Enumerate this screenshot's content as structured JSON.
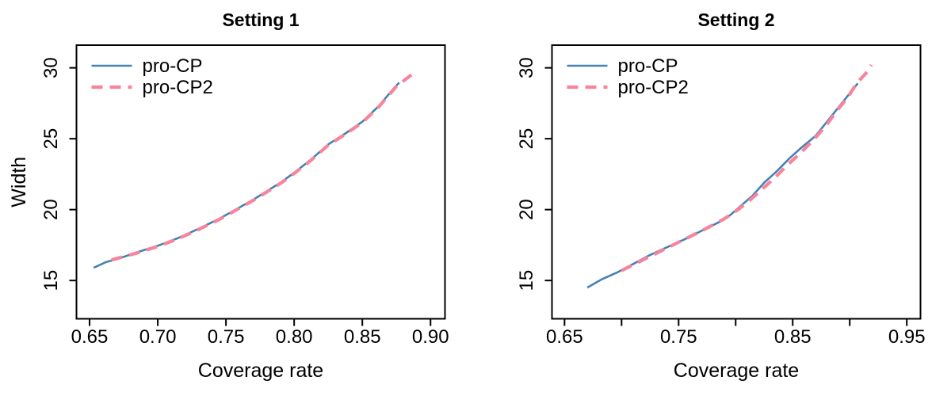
{
  "figure": {
    "background": "#ffffff",
    "text_color": "#000000"
  },
  "chart_data": [
    {
      "type": "line",
      "title": "Setting 1",
      "xlabel": "Coverage rate",
      "ylabel": "Width",
      "xlim": [
        0.6404,
        0.9106
      ],
      "ylim": [
        12.3,
        31.6
      ],
      "grid": false,
      "legend_position": "top-left",
      "legend_box": false,
      "x_ticks": [
        {
          "v": 0.65,
          "label": "0.65"
        },
        {
          "v": 0.7,
          "label": "0.70"
        },
        {
          "v": 0.75,
          "label": "0.75"
        },
        {
          "v": 0.8,
          "label": "0.80"
        },
        {
          "v": 0.85,
          "label": "0.85"
        },
        {
          "v": 0.9,
          "label": "0.90"
        }
      ],
      "y_ticks": [
        {
          "v": 15,
          "label": "15"
        },
        {
          "v": 20,
          "label": "20"
        },
        {
          "v": 25,
          "label": "25"
        },
        {
          "v": 30,
          "label": "30"
        }
      ],
      "series": [
        {
          "name": "pro-CP",
          "color": "#4682B4",
          "style": "solid",
          "line_width": 2.6,
          "points": [
            [
              0.653,
              15.9
            ],
            [
              0.662,
              16.3
            ],
            [
              0.67,
              16.5
            ],
            [
              0.685,
              17.0
            ],
            [
              0.7,
              17.45
            ],
            [
              0.715,
              18.0
            ],
            [
              0.73,
              18.65
            ],
            [
              0.745,
              19.35
            ],
            [
              0.757,
              20.0
            ],
            [
              0.77,
              20.7
            ],
            [
              0.78,
              21.3
            ],
            [
              0.79,
              21.9
            ],
            [
              0.8,
              22.6
            ],
            [
              0.812,
              23.5
            ],
            [
              0.825,
              24.6
            ],
            [
              0.838,
              25.4
            ],
            [
              0.85,
              26.2
            ],
            [
              0.862,
              27.3
            ],
            [
              0.873,
              28.55
            ],
            [
              0.877,
              28.95
            ]
          ]
        },
        {
          "name": "pro-CP2",
          "color": "#F8849C",
          "style": "dashed",
          "line_width": 4.2,
          "points": [
            [
              0.666,
              16.45
            ],
            [
              0.685,
              16.95
            ],
            [
              0.7,
              17.4
            ],
            [
              0.715,
              17.95
            ],
            [
              0.73,
              18.6
            ],
            [
              0.745,
              19.3
            ],
            [
              0.757,
              19.95
            ],
            [
              0.77,
              20.65
            ],
            [
              0.78,
              21.25
            ],
            [
              0.79,
              21.85
            ],
            [
              0.8,
              22.55
            ],
            [
              0.812,
              23.45
            ],
            [
              0.825,
              24.55
            ],
            [
              0.838,
              25.35
            ],
            [
              0.85,
              26.15
            ],
            [
              0.862,
              27.25
            ],
            [
              0.875,
              28.7
            ],
            [
              0.888,
              29.65
            ]
          ]
        }
      ]
    },
    {
      "type": "line",
      "title": "Setting 2",
      "xlabel": "Coverage rate",
      "ylabel": "",
      "xlim": [
        0.639,
        0.962
      ],
      "ylim": [
        12.3,
        31.6
      ],
      "grid": false,
      "legend_position": "top-left",
      "legend_box": false,
      "x_ticks": [
        {
          "v": 0.65,
          "label": "0.65"
        },
        {
          "v": 0.7,
          "label": ""
        },
        {
          "v": 0.75,
          "label": "0.75"
        },
        {
          "v": 0.8,
          "label": ""
        },
        {
          "v": 0.85,
          "label": "0.85"
        },
        {
          "v": 0.9,
          "label": ""
        },
        {
          "v": 0.95,
          "label": "0.95"
        }
      ],
      "y_ticks": [
        {
          "v": 15,
          "label": "15"
        },
        {
          "v": 20,
          "label": "20"
        },
        {
          "v": 25,
          "label": "25"
        },
        {
          "v": 30,
          "label": "30"
        }
      ],
      "series": [
        {
          "name": "pro-CP",
          "color": "#4682B4",
          "style": "solid",
          "line_width": 2.6,
          "points": [
            [
              0.67,
              14.5
            ],
            [
              0.683,
              15.1
            ],
            [
              0.697,
              15.6
            ],
            [
              0.711,
              16.2
            ],
            [
              0.725,
              16.8
            ],
            [
              0.74,
              17.35
            ],
            [
              0.755,
              17.9
            ],
            [
              0.77,
              18.5
            ],
            [
              0.785,
              19.1
            ],
            [
              0.795,
              19.6
            ],
            [
              0.805,
              20.3
            ],
            [
              0.815,
              21.0
            ],
            [
              0.825,
              21.9
            ],
            [
              0.836,
              22.7
            ],
            [
              0.847,
              23.6
            ],
            [
              0.858,
              24.4
            ],
            [
              0.87,
              25.2
            ],
            [
              0.88,
              26.2
            ],
            [
              0.89,
              27.2
            ],
            [
              0.899,
              28.1
            ],
            [
              0.907,
              28.9
            ]
          ]
        },
        {
          "name": "pro-CP2",
          "color": "#F8849C",
          "style": "dashed",
          "line_width": 4.2,
          "points": [
            [
              0.7,
              15.7
            ],
            [
              0.715,
              16.3
            ],
            [
              0.73,
              16.9
            ],
            [
              0.745,
              17.5
            ],
            [
              0.76,
              18.1
            ],
            [
              0.775,
              18.7
            ],
            [
              0.79,
              19.35
            ],
            [
              0.802,
              20.0
            ],
            [
              0.813,
              20.7
            ],
            [
              0.824,
              21.5
            ],
            [
              0.835,
              22.3
            ],
            [
              0.846,
              23.2
            ],
            [
              0.857,
              24.0
            ],
            [
              0.868,
              24.9
            ],
            [
              0.879,
              25.9
            ],
            [
              0.889,
              27.0
            ],
            [
              0.898,
              27.9
            ],
            [
              0.907,
              29.0
            ],
            [
              0.914,
              29.6
            ],
            [
              0.919,
              30.2
            ]
          ]
        }
      ]
    }
  ]
}
